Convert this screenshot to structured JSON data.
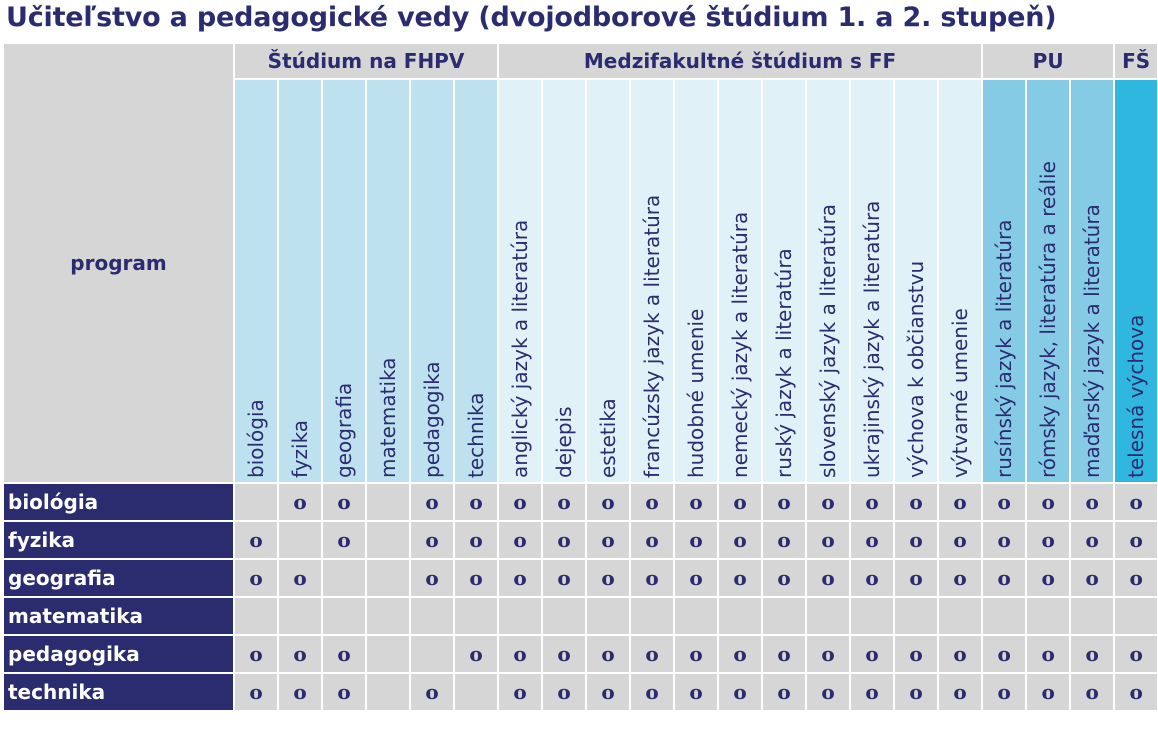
{
  "title": "Učiteľstvo a pedagogické vedy (dvojodborové štúdium 1. a 2. stupeň)",
  "program_label": "program",
  "groups": [
    {
      "label": "Štúdium na FHPV",
      "span": 6,
      "color": "#bde1ef"
    },
    {
      "label": "Medzifakultné štúdium s FF",
      "span": 11,
      "color": "#e1f1f8"
    },
    {
      "label": "PU",
      "span": 3,
      "color": "#85cbe6"
    },
    {
      "label": "FŠ",
      "span": 1,
      "color": "#2fb7e0"
    }
  ],
  "columns": [
    "biológia",
    "fyzika",
    "geografia",
    "matematika",
    "pedagogika",
    "technika",
    "anglický jazyk a literatúra",
    "dejepis",
    "estetika",
    "francúzsky jazyk a literatúra",
    "hudobné umenie",
    "nemecký jazyk a literatúra",
    "ruský jazyk a literatúra",
    "slovenský jazyk a literatúra",
    "ukrajinský jazyk a literatúra",
    "výchova k občianstvu",
    "výtvarné umenie",
    "rusínský jazyk a literatúra",
    "rómsky jazyk, literatúra a reálie",
    "maďarský jazyk a literatúra",
    "telesná výchova"
  ],
  "mark": "o",
  "rows": [
    {
      "label": "biológia",
      "cells": [
        0,
        1,
        1,
        0,
        1,
        1,
        1,
        1,
        1,
        1,
        1,
        1,
        1,
        1,
        1,
        1,
        1,
        1,
        1,
        1,
        1
      ]
    },
    {
      "label": "fyzika",
      "cells": [
        1,
        0,
        1,
        0,
        1,
        1,
        1,
        1,
        1,
        1,
        1,
        1,
        1,
        1,
        1,
        1,
        1,
        1,
        1,
        1,
        1
      ]
    },
    {
      "label": "geografia",
      "cells": [
        1,
        1,
        0,
        0,
        1,
        1,
        1,
        1,
        1,
        1,
        1,
        1,
        1,
        1,
        1,
        1,
        1,
        1,
        1,
        1,
        1
      ]
    },
    {
      "label": "matematika",
      "cells": [
        0,
        0,
        0,
        0,
        0,
        0,
        0,
        0,
        0,
        0,
        0,
        0,
        0,
        0,
        0,
        0,
        0,
        0,
        0,
        0,
        0
      ]
    },
    {
      "label": "pedagogika",
      "cells": [
        1,
        1,
        1,
        0,
        0,
        1,
        1,
        1,
        1,
        1,
        1,
        1,
        1,
        1,
        1,
        1,
        1,
        1,
        1,
        1,
        1
      ]
    },
    {
      "label": "technika",
      "cells": [
        1,
        1,
        1,
        0,
        1,
        0,
        1,
        1,
        1,
        1,
        1,
        1,
        1,
        1,
        1,
        1,
        1,
        1,
        1,
        1,
        1
      ]
    }
  ]
}
